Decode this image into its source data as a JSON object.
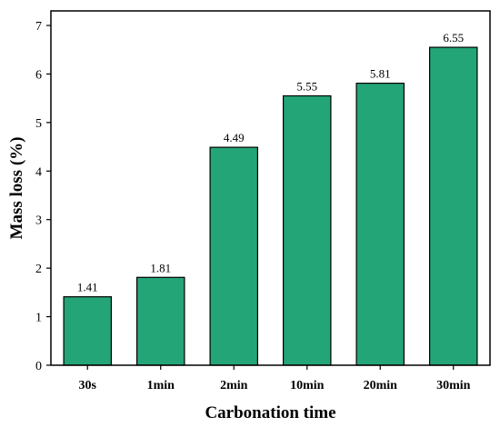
{
  "chart_data": {
    "type": "bar",
    "categories": [
      "30s",
      "1min",
      "2min",
      "10min",
      "20min",
      "30min"
    ],
    "values": [
      1.41,
      1.81,
      4.49,
      5.55,
      5.81,
      6.55
    ],
    "value_labels": [
      "1.41",
      "1.81",
      "4.49",
      "5.55",
      "5.81",
      "6.55"
    ],
    "xlabel": "Carbonation time",
    "ylabel": "Mass loss (%)",
    "ylim": [
      0,
      7.3
    ],
    "yticks": [
      0,
      1,
      2,
      3,
      4,
      5,
      6,
      7
    ],
    "grid": false,
    "legend": "none",
    "bar_color": "#24a577",
    "edge_color": "#000000"
  }
}
